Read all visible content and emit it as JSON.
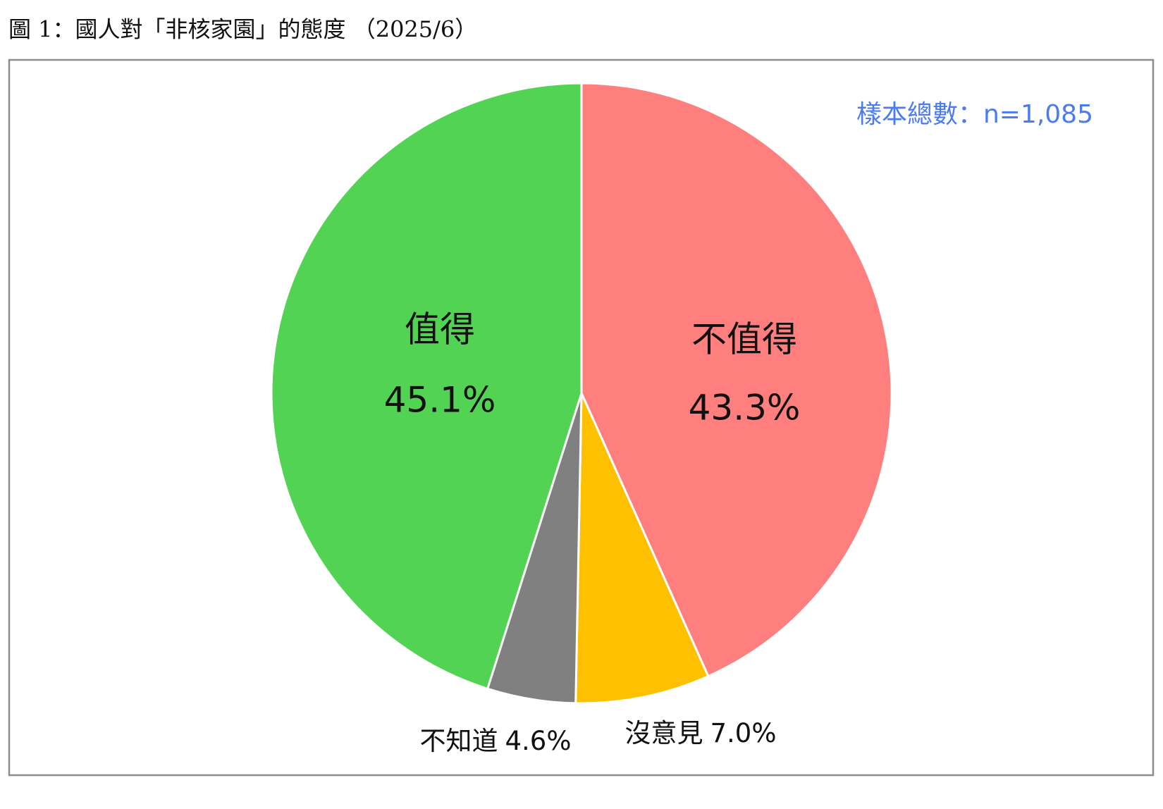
{
  "chart_data": {
    "type": "pie",
    "title": "圖 1：國人對「非核家園」的態度 （2025/6）",
    "note": "樣本總數：n=1,085",
    "categories": [
      "不值得",
      "沒意見",
      "不知道",
      "值得"
    ],
    "values": [
      43.3,
      7.0,
      4.6,
      45.1
    ],
    "value_labels": [
      "43.3%",
      "7.0%",
      "4.6%",
      "45.1%"
    ],
    "colors": [
      "#ff7f7f",
      "#ffc000",
      "#808080",
      "#53d353"
    ]
  }
}
